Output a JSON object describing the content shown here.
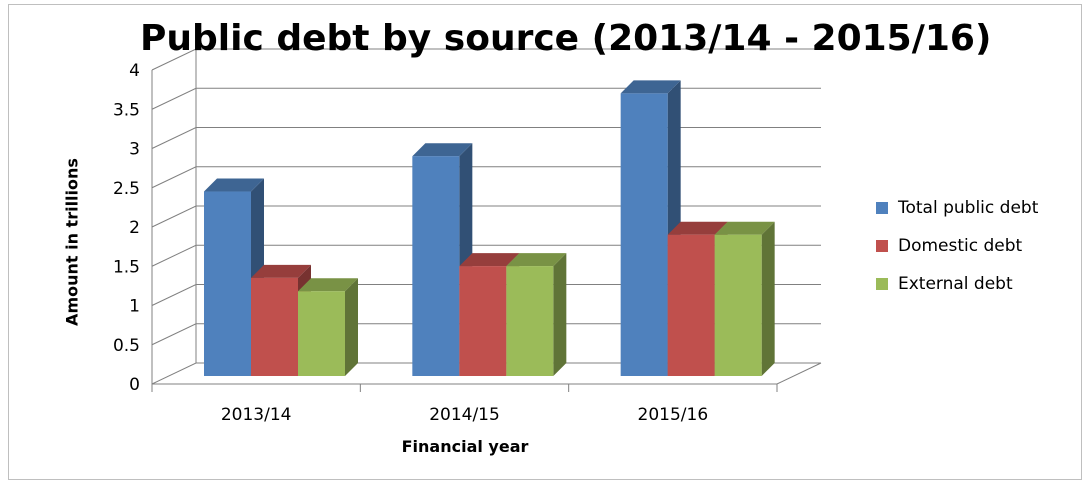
{
  "chart_data": {
    "type": "bar",
    "title": "Public debt by source (2013/14 - 2015/16)",
    "xlabel": "Financial year",
    "ylabel": "Amount in trillions",
    "categories": [
      "2013/14",
      "2014/15",
      "2015/16"
    ],
    "series": [
      {
        "name": "Total public debt",
        "values": [
          2.35,
          2.8,
          3.6
        ],
        "color": "#4f81bd"
      },
      {
        "name": "Domestic debt",
        "values": [
          1.25,
          1.4,
          1.8
        ],
        "color": "#c0504d"
      },
      {
        "name": "External debt",
        "values": [
          1.08,
          1.4,
          1.8
        ],
        "color": "#9bbb59"
      }
    ],
    "yticks": [
      "0",
      "0.5",
      "1",
      "1.5",
      "2",
      "2.5",
      "3",
      "3.5",
      "4"
    ],
    "ylim": [
      0,
      4
    ],
    "grid": true,
    "legend_position": "right"
  }
}
